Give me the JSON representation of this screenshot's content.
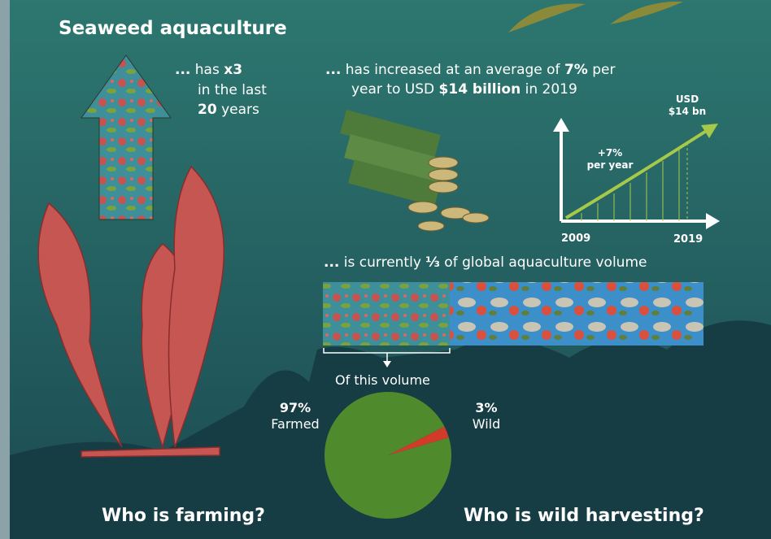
{
  "header": {
    "title": "Seaweed aquaculture"
  },
  "growth": {
    "parts": [
      "...",
      "has",
      "x3",
      "in the last",
      "20",
      "years"
    ]
  },
  "value": {
    "parts": [
      "...",
      "has increased at an average of",
      "7%",
      "per",
      "year to USD",
      "$14 billion",
      "in 2019"
    ]
  },
  "trend": {
    "end_label": [
      "USD",
      "$14 bn"
    ],
    "rate_label": [
      "+7%",
      "per year"
    ],
    "start_year": "2009",
    "end_year": "2019"
  },
  "share": {
    "parts": [
      "...",
      "is currently",
      "⅓",
      "of global aquaculture volume"
    ],
    "caption": "Of this volume"
  },
  "pie": {
    "values": [
      97,
      3
    ],
    "value_labels": [
      "97%",
      "3%"
    ],
    "labels": [
      "Farmed",
      "Wild"
    ],
    "colors": [
      "#4f8a2c",
      "#d23a2a"
    ]
  },
  "footer": {
    "left": "Who is farming?",
    "right": "Who is wild harvesting?"
  }
}
